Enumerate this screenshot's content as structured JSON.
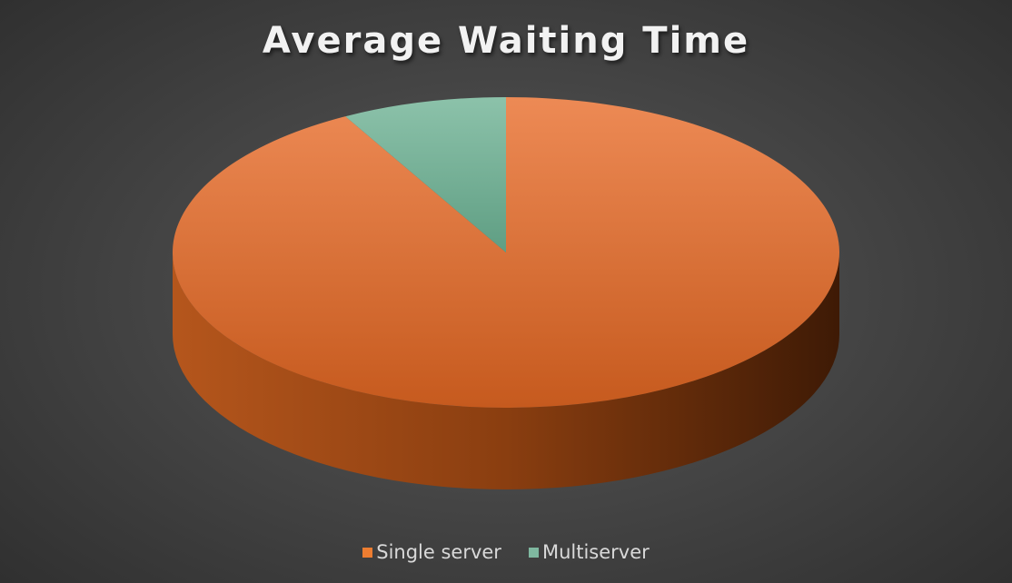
{
  "chart_data": {
    "type": "pie",
    "title": "Average Waiting Time",
    "series": [
      {
        "name": "Single server",
        "value": 0.92,
        "color": "#ED7D31"
      },
      {
        "name": "Multiserver",
        "value": 0.08,
        "color": "#7FB8A0"
      }
    ],
    "legend": "bottom",
    "style": "3d"
  }
}
